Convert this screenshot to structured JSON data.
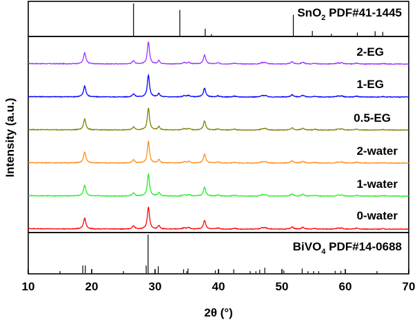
{
  "chart_data": {
    "type": "line",
    "title": "",
    "xlabel": "2θ (°)",
    "ylabel": "Intensity (a.u.)",
    "xlim": [
      10,
      70
    ],
    "x_ticks": [
      10,
      20,
      30,
      40,
      50,
      60,
      70
    ],
    "y_ticks": "none",
    "stacked_offset": true,
    "reference_top": {
      "label_main": "SnO",
      "label_sub": "2",
      "label_tail": " PDF#41-1445",
      "peaks": [
        {
          "x": 26.6,
          "h": 1.0
        },
        {
          "x": 33.9,
          "h": 0.8
        },
        {
          "x": 37.9,
          "h": 0.22
        },
        {
          "x": 38.9,
          "h": 0.05
        },
        {
          "x": 51.8,
          "h": 0.65
        },
        {
          "x": 54.8,
          "h": 0.15
        },
        {
          "x": 57.8,
          "h": 0.06
        },
        {
          "x": 61.9,
          "h": 0.1
        },
        {
          "x": 64.7,
          "h": 0.14
        },
        {
          "x": 65.9,
          "h": 0.12
        }
      ]
    },
    "reference_bottom": {
      "label_main": "BiVO",
      "label_sub": "4",
      "label_tail": " PDF#14-0688",
      "peaks": [
        {
          "x": 18.6,
          "h": 0.2
        },
        {
          "x": 19.0,
          "h": 0.2
        },
        {
          "x": 28.6,
          "h": 0.2
        },
        {
          "x": 28.9,
          "h": 1.0
        },
        {
          "x": 30.5,
          "h": 0.18
        },
        {
          "x": 34.5,
          "h": 0.1
        },
        {
          "x": 35.2,
          "h": 0.12
        },
        {
          "x": 39.5,
          "h": 0.07
        },
        {
          "x": 40.0,
          "h": 0.08
        },
        {
          "x": 42.4,
          "h": 0.1
        },
        {
          "x": 45.9,
          "h": 0.05
        },
        {
          "x": 46.5,
          "h": 0.09
        },
        {
          "x": 47.3,
          "h": 0.14
        },
        {
          "x": 50.3,
          "h": 0.07
        },
        {
          "x": 53.2,
          "h": 0.12
        },
        {
          "x": 54.1,
          "h": 0.05
        },
        {
          "x": 55.8,
          "h": 0.05
        },
        {
          "x": 58.4,
          "h": 0.06
        },
        {
          "x": 59.3,
          "h": 0.06
        }
      ]
    },
    "sample_peaks": [
      {
        "x": 18.9,
        "h": 0.5,
        "w": 0.22
      },
      {
        "x": 26.6,
        "h": 0.14,
        "w": 0.22
      },
      {
        "x": 28.95,
        "h": 1.0,
        "w": 0.2
      },
      {
        "x": 30.6,
        "h": 0.15,
        "w": 0.2
      },
      {
        "x": 34.6,
        "h": 0.06,
        "w": 0.25
      },
      {
        "x": 35.3,
        "h": 0.07,
        "w": 0.25
      },
      {
        "x": 37.8,
        "h": 0.4,
        "w": 0.22
      },
      {
        "x": 39.9,
        "h": 0.05,
        "w": 0.25
      },
      {
        "x": 42.5,
        "h": 0.04,
        "w": 0.25
      },
      {
        "x": 46.9,
        "h": 0.06,
        "w": 0.25
      },
      {
        "x": 47.4,
        "h": 0.06,
        "w": 0.25
      },
      {
        "x": 51.6,
        "h": 0.1,
        "w": 0.25
      },
      {
        "x": 53.3,
        "h": 0.08,
        "w": 0.25
      },
      {
        "x": 55.2,
        "h": 0.03,
        "w": 0.25
      },
      {
        "x": 58.8,
        "h": 0.04,
        "w": 0.25
      },
      {
        "x": 59.4,
        "h": 0.05,
        "w": 0.25
      },
      {
        "x": 61.8,
        "h": 0.04,
        "w": 0.25
      },
      {
        "x": 66.0,
        "h": 0.02,
        "w": 0.25
      }
    ],
    "series": [
      {
        "name": "2-EG",
        "color": "#9933ff",
        "offset": 5
      },
      {
        "name": "1-EG",
        "color": "#0000ff",
        "offset": 4
      },
      {
        "name": "0.5-EG",
        "color": "#808000",
        "offset": 3
      },
      {
        "name": "2-water",
        "color": "#ff8c1a",
        "offset": 2
      },
      {
        "name": "1-water",
        "color": "#22ee22",
        "offset": 1
      },
      {
        "name": "0-water",
        "color": "#ff0000",
        "offset": 0
      }
    ]
  }
}
